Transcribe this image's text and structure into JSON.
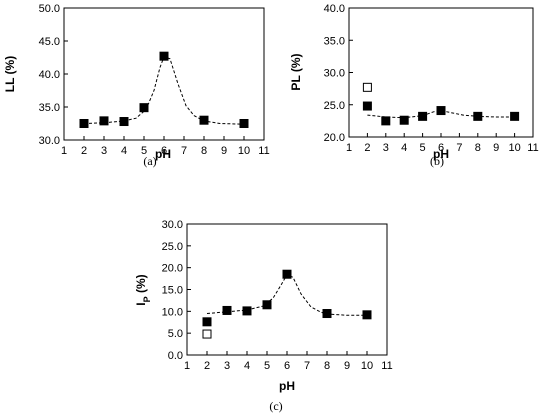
{
  "chart_data": [
    {
      "type": "scatter",
      "panel": "(a)",
      "xlabel": "pH",
      "ylabel": "LL (%)",
      "xlim": [
        1,
        11
      ],
      "ylim": [
        30.0,
        50.0
      ],
      "x_ticks": [
        "1",
        "2",
        "3",
        "4",
        "5",
        "6",
        "7",
        "8",
        "9",
        "10",
        "11"
      ],
      "y_ticks": [
        "30.0",
        "35.0",
        "40.0",
        "45.0",
        "50.0"
      ],
      "series": [
        {
          "marker": "filled-square",
          "points": [
            [
              2,
              32.5
            ],
            [
              3,
              32.9
            ],
            [
              4,
              32.8
            ],
            [
              5,
              34.9
            ],
            [
              6,
              42.7
            ],
            [
              8,
              33.0
            ],
            [
              10,
              32.5
            ]
          ]
        }
      ],
      "trendline": {
        "style": "dashed",
        "points": [
          [
            2,
            32.5
          ],
          [
            3,
            32.6
          ],
          [
            4,
            32.9
          ],
          [
            4.6,
            33.3
          ],
          [
            5.1,
            34.6
          ],
          [
            5.5,
            37.5
          ],
          [
            5.8,
            41.0
          ],
          [
            6,
            42.6
          ],
          [
            6.3,
            42.3
          ],
          [
            6.7,
            38.5
          ],
          [
            7.1,
            35.2
          ],
          [
            7.5,
            33.7
          ],
          [
            8,
            32.9
          ],
          [
            8.8,
            32.5
          ],
          [
            10,
            32.4
          ]
        ]
      }
    },
    {
      "type": "scatter",
      "panel": "(b)",
      "xlabel": "pH",
      "ylabel": "PL (%)",
      "xlim": [
        1,
        11
      ],
      "ylim": [
        20.0,
        40.0
      ],
      "x_ticks": [
        "1",
        "2",
        "3",
        "4",
        "5",
        "6",
        "7",
        "8",
        "9",
        "10",
        "11"
      ],
      "y_ticks": [
        "20.0",
        "25.0",
        "30.0",
        "35.0",
        "40.0"
      ],
      "series": [
        {
          "marker": "filled-square",
          "points": [
            [
              2,
              24.8
            ],
            [
              3,
              22.5
            ],
            [
              4,
              22.6
            ],
            [
              5,
              23.2
            ],
            [
              6,
              24.1
            ],
            [
              8,
              23.2
            ],
            [
              10,
              23.2
            ]
          ]
        },
        {
          "marker": "open-square",
          "points": [
            [
              2,
              27.7
            ]
          ]
        }
      ],
      "trendline": {
        "style": "dashed",
        "points": [
          [
            2,
            23.4
          ],
          [
            3,
            23.1
          ],
          [
            4,
            23.0
          ],
          [
            5,
            23.3
          ],
          [
            5.6,
            23.9
          ],
          [
            6,
            24.1
          ],
          [
            6.5,
            23.8
          ],
          [
            7.2,
            23.4
          ],
          [
            8,
            23.2
          ],
          [
            9,
            23.1
          ],
          [
            10,
            23.1
          ]
        ]
      }
    },
    {
      "type": "scatter",
      "panel": "(c)",
      "xlabel": "pH",
      "ylabel": "I",
      "ylabel_sub": "P",
      "ylabel_unit": " (%)",
      "xlim": [
        1,
        11
      ],
      "ylim": [
        0.0,
        30.0
      ],
      "x_ticks": [
        "1",
        "2",
        "3",
        "4",
        "5",
        "6",
        "7",
        "8",
        "9",
        "10",
        "11"
      ],
      "y_ticks": [
        "0.0",
        "5.0",
        "10.0",
        "15.0",
        "20.0",
        "25.0",
        "30.0"
      ],
      "series": [
        {
          "marker": "filled-square",
          "points": [
            [
              2,
              7.6
            ],
            [
              3,
              10.2
            ],
            [
              4,
              10.1
            ],
            [
              5,
              11.5
            ],
            [
              6,
              18.5
            ],
            [
              8,
              9.5
            ],
            [
              10,
              9.2
            ]
          ]
        },
        {
          "marker": "open-square",
          "points": [
            [
              2,
              4.8
            ]
          ]
        }
      ],
      "trendline": {
        "style": "dashed",
        "points": [
          [
            2,
            9.5
          ],
          [
            3,
            9.9
          ],
          [
            4,
            10.3
          ],
          [
            4.8,
            11.2
          ],
          [
            5.3,
            13.0
          ],
          [
            5.7,
            16.0
          ],
          [
            6,
            18.4
          ],
          [
            6.3,
            17.8
          ],
          [
            6.7,
            14.0
          ],
          [
            7.2,
            11.0
          ],
          [
            7.7,
            9.8
          ],
          [
            8,
            9.4
          ],
          [
            9,
            9.1
          ],
          [
            10,
            9.1
          ]
        ]
      }
    }
  ],
  "captions": [
    "(a)",
    "(b)",
    "(c)"
  ]
}
